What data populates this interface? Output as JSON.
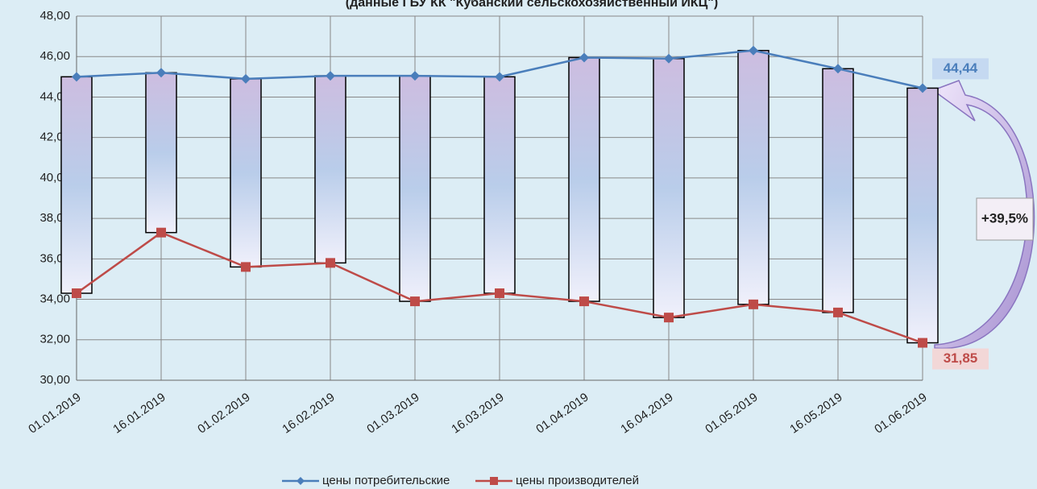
{
  "chart_data": {
    "type": "line",
    "title": "(данные ГБУ КК \"Кубанский сельскохозяйственный ИКЦ\")",
    "categories": [
      "01.01.2019",
      "16.01.2019",
      "01.02.2019",
      "16.02.2019",
      "01.03.2019",
      "16.03.2019",
      "01.04.2019",
      "16.04.2019",
      "01.05.2019",
      "16.05.2019",
      "01.06.2019"
    ],
    "series": [
      {
        "name": "цены потребительские",
        "color": "#4a7ebb",
        "values": [
          45.0,
          45.2,
          44.9,
          45.05,
          45.05,
          45.0,
          45.95,
          45.9,
          46.3,
          45.4,
          44.44
        ],
        "value_labels": [
          null,
          null,
          null,
          null,
          null,
          null,
          null,
          null,
          null,
          null,
          "44,44"
        ]
      },
      {
        "name": "цены производителей",
        "color": "#be4b48",
        "values": [
          34.3,
          37.3,
          35.6,
          35.8,
          33.9,
          34.3,
          33.9,
          33.1,
          33.75,
          33.35,
          31.85
        ],
        "value_labels": [
          null,
          null,
          null,
          null,
          null,
          null,
          null,
          null,
          null,
          null,
          "31,85"
        ]
      }
    ],
    "annotation": "+39,5%",
    "ylim": [
      30,
      48
    ],
    "yticks": [
      {
        "value": 30,
        "label": "30,00"
      },
      {
        "value": 32,
        "label": "32,00"
      },
      {
        "value": 34,
        "label": "34,00"
      },
      {
        "value": 36,
        "label": "36,00"
      },
      {
        "value": 38,
        "label": "38,00"
      },
      {
        "value": 40,
        "label": "40,00"
      },
      {
        "value": 42,
        "label": "42,00"
      },
      {
        "value": 44,
        "label": "44,00"
      },
      {
        "value": 46,
        "label": "46,00"
      },
      {
        "value": 48,
        "label": "48,00"
      }
    ],
    "grid": true
  }
}
